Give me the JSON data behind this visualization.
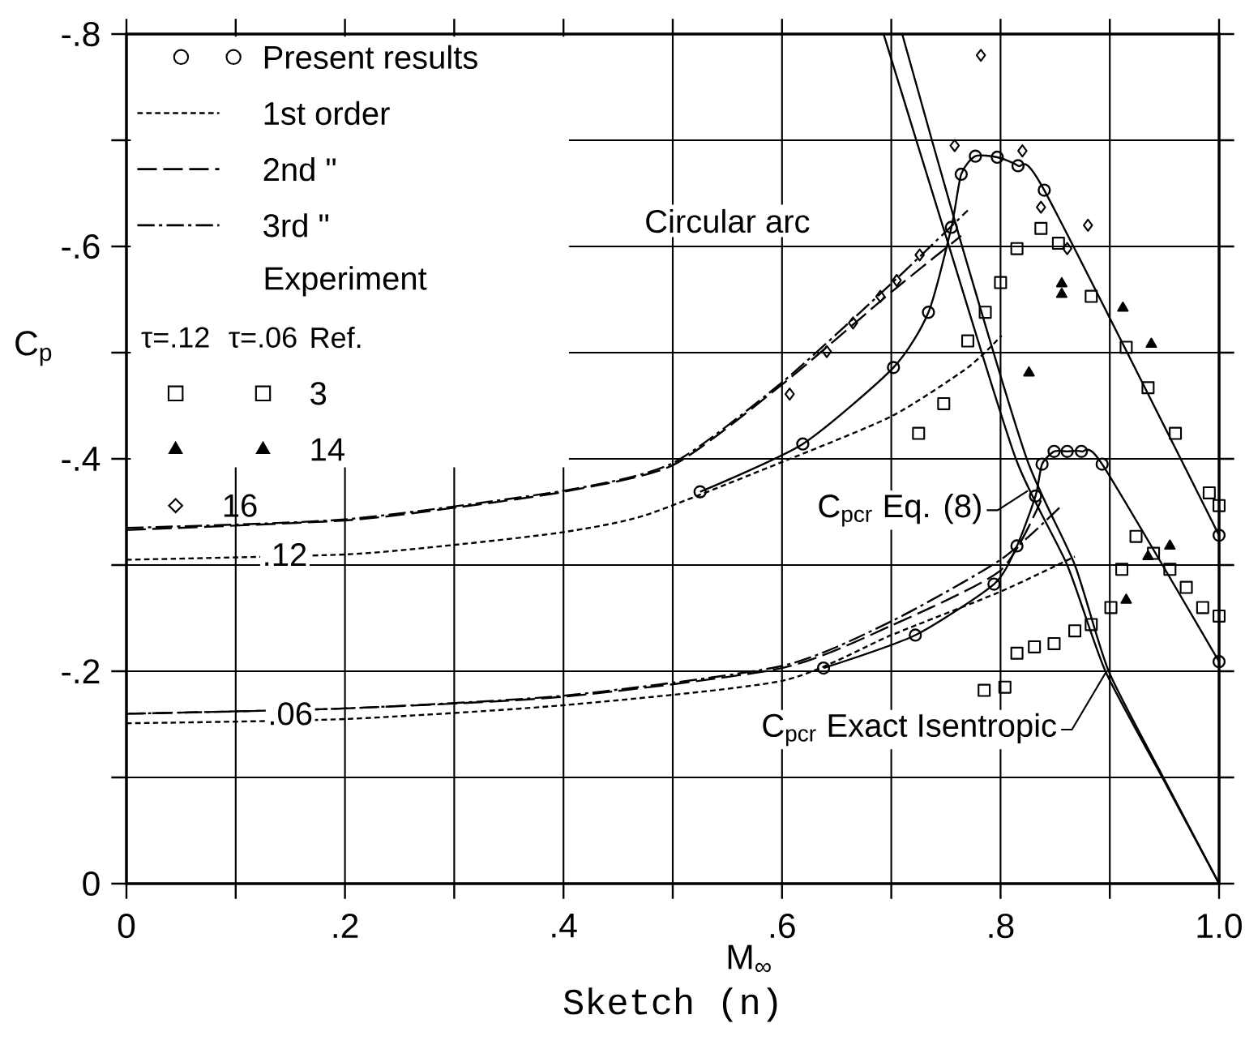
{
  "chart_data": {
    "type": "line",
    "xlabel": "M$_{∞}$",
    "ylabel": "C$_{p}$",
    "legend_title": "Experiment",
    "xlim": [
      0,
      1
    ],
    "ylim": [
      0,
      -0.8
    ],
    "xticks": [
      0,
      {
        "value": 0.1,
        "label": null
      },
      {
        "value": 0.2,
        "label": ".2"
      },
      {
        "value": 0.3,
        "label": null
      },
      {
        "value": 0.4,
        "label": ".4"
      },
      {
        "value": 0.5,
        "label": null
      },
      {
        "value": 0.6,
        "label": ".6"
      },
      {
        "value": 0.7,
        "label": null
      },
      {
        "value": 0.8,
        "label": ".8"
      },
      {
        "value": 0.9,
        "label": null
      },
      {
        "value": 1,
        "label": "1.0"
      }
    ],
    "yticks": [
      0,
      {
        "value": -0.1,
        "label": null
      },
      {
        "value": -0.2,
        "label": "-.2"
      },
      {
        "value": -0.3,
        "label": null
      },
      {
        "value": -0.4,
        "label": "-.4"
      },
      {
        "value": -0.5,
        "label": null
      },
      {
        "value": -0.6,
        "label": "-.6"
      },
      {
        "value": -0.7,
        "label": null
      },
      {
        "value": -0.8,
        "label": "-.8"
      }
    ],
    "grid": true,
    "legend": "top left",
    "series": [
      {
        "name": "Present results",
        "marker": "circle",
        "line_style": "solid",
        "color": "#000000",
        "x": [
          0.525,
          0.619,
          0.702,
          0.734,
          0.755,
          0.764,
          0.777,
          0.797,
          0.816,
          0.84,
          1.0
        ],
        "values": [
          -0.369,
          -0.414,
          -0.486,
          -0.538,
          -0.618,
          -0.668,
          -0.685,
          -0.684,
          -0.676,
          -0.653,
          -0.328
        ]
      },
      {
        "marker": "circle",
        "line_style": "solid",
        "color": "#000000",
        "x": [
          0.638,
          0.722,
          0.794,
          0.815,
          0.832,
          0.838,
          0.849,
          0.861,
          0.874,
          0.893,
          1.0
        ],
        "values": [
          -0.203,
          -0.234,
          -0.282,
          -0.318,
          -0.365,
          -0.395,
          -0.407,
          -0.407,
          -0.407,
          -0.395,
          -0.209
        ]
      },
      {
        "name": "1st order",
        "marker": "none",
        "line_style": "dotted",
        "color": "#000000",
        "x": [
          0,
          0.2,
          0.3,
          0.4,
          0.475,
          0.6,
          0.7,
          0.77,
          0.801
        ],
        "values": [
          -0.305,
          -0.31,
          -0.319,
          -0.331,
          -0.347,
          -0.397,
          -0.44,
          -0.486,
          -0.516
        ]
      },
      {
        "name": "2nd \"",
        "marker": "none",
        "line_style": "dashed",
        "color": "#000000",
        "x": [
          0,
          0.2,
          0.3,
          0.4,
          0.5,
          0.6,
          0.7,
          0.764
        ],
        "values": [
          -0.333,
          -0.342,
          -0.354,
          -0.369,
          -0.394,
          -0.47,
          -0.557,
          -0.61
        ]
      },
      {
        "name": "3rd \"",
        "marker": "none",
        "line_style": "dashdot",
        "color": "#000000",
        "x": [
          0,
          0.2,
          0.4,
          0.5,
          0.6,
          0.7,
          0.77
        ],
        "values": [
          -0.335,
          -0.343,
          -0.37,
          -0.396,
          -0.472,
          -0.565,
          -0.634
        ]
      },
      {
        "name": "3",
        "type": "scatter",
        "marker": "square",
        "color": "#000000",
        "x": [
          0.725,
          0.748,
          0.77,
          0.786,
          0.8,
          0.815,
          0.837,
          0.853,
          0.883,
          0.915,
          0.935,
          0.96,
          0.991,
          1.0
        ],
        "values": [
          -0.424,
          -0.452,
          -0.511,
          -0.538,
          -0.566,
          -0.598,
          -0.617,
          -0.603,
          -0.553,
          -0.505,
          -0.467,
          -0.424,
          -0.368,
          -0.356
        ]
      },
      {
        "type": "scatter",
        "marker": "square",
        "color": "#000000",
        "x": [
          0.785,
          0.804,
          0.815,
          0.831,
          0.849,
          0.868,
          0.883,
          0.901,
          0.911,
          0.924,
          0.94,
          0.955,
          0.97,
          0.985,
          1.0
        ],
        "values": [
          -0.182,
          -0.185,
          -0.217,
          -0.223,
          -0.226,
          -0.238,
          -0.244,
          -0.26,
          -0.296,
          -0.327,
          -0.311,
          -0.296,
          -0.279,
          -0.26,
          -0.252
        ]
      },
      {
        "name": "14",
        "type": "scatter",
        "marker": "triangle",
        "color": "#000000",
        "x": [
          0.826,
          0.856,
          0.856,
          0.912,
          0.938
        ],
        "values": [
          -0.481,
          -0.565,
          -0.555,
          -0.542,
          -0.508
        ]
      },
      {
        "type": "scatter",
        "marker": "triangle",
        "color": "#000000",
        "x": [
          0.915,
          0.935,
          0.955
        ],
        "values": [
          -0.267,
          -0.308,
          -0.318
        ]
      },
      {
        "name": "16",
        "type": "scatter",
        "marker": "diamond",
        "color": "#000000",
        "x": [
          0.607,
          0.641,
          0.665,
          0.69,
          0.705,
          0.726,
          0.758,
          0.782,
          0.82,
          0.837,
          0.861,
          0.88
        ],
        "values": [
          -0.461,
          -0.501,
          -0.528,
          -0.553,
          -0.568,
          -0.592,
          -0.695,
          -0.78,
          -0.69,
          -0.637,
          -0.598,
          -0.62
        ]
      },
      {
        "marker": "none",
        "line_style": "dotted",
        "color": "#000000",
        "x": [
          0,
          0.2,
          0.4,
          0.6,
          0.7,
          0.8,
          0.868
        ],
        "values": [
          -0.151,
          -0.155,
          -0.168,
          -0.191,
          -0.234,
          -0.275,
          -0.308
        ]
      },
      {
        "marker": "none",
        "line_style": "dashed",
        "color": "#000000",
        "x": [
          0,
          0.2,
          0.4,
          0.6,
          0.7,
          0.8,
          0.838
        ],
        "values": [
          -0.16,
          -0.165,
          -0.176,
          -0.203,
          -0.243,
          -0.295,
          -0.363
        ]
      },
      {
        "marker": "none",
        "line_style": "dashdot",
        "color": "#000000",
        "x": [
          0,
          0.2,
          0.4,
          0.6,
          0.7,
          0.8,
          0.856
        ],
        "values": [
          -0.16,
          -0.165,
          -0.177,
          -0.205,
          -0.247,
          -0.305,
          -0.356
        ]
      },
      {
        "marker": "none",
        "line_style": "solid",
        "color": "#000000",
        "x": [
          0.693,
          0.752,
          0.814,
          0.861,
          0.896,
          0.948,
          1.0
        ],
        "values": [
          -0.8,
          -0.603,
          -0.4,
          -0.3,
          -0.2,
          -0.1,
          0
        ]
      },
      {
        "marker": "none",
        "line_style": "solid",
        "color": "#000000",
        "x": [
          0.71,
          0.764,
          0.824,
          0.868,
          0.899,
          0.949,
          1.0
        ],
        "values": [
          -0.8,
          -0.603,
          -0.4,
          -0.3,
          -0.2,
          -0.1,
          0
        ]
      }
    ],
    "annotations": [
      "Ref.",
      "τ=.12",
      "τ=.06",
      "Circular arc",
      {
        "text": ".12",
        "x": 0.145,
        "y": -0.31
      },
      {
        "text": ".06",
        "x": 0.15,
        "y": -0.16
      },
      {
        "text": "C$_{pcr}$ Eq. (8)",
        "x": 0.825,
        "y": -0.37
      },
      {
        "text": "C$_{pcr}$ Exact Isentropic",
        "x": 0.897,
        "y": -0.2
      },
      "Sketch (n)"
    ]
  }
}
